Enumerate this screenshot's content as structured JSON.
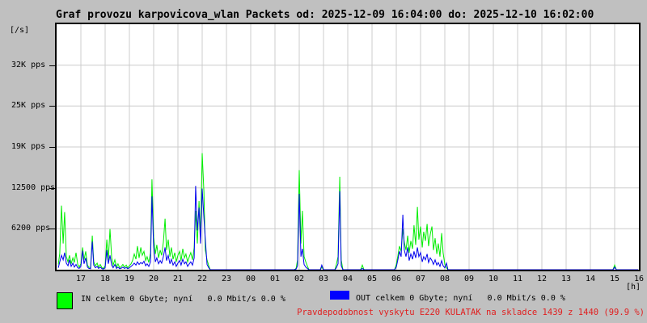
{
  "window": {
    "background": "#c0c0c0"
  },
  "title": "Graf provozu karpovicova_wlan Packets od: 2025-12-09 16:04:00 do: 2025-12-10 16:02:00",
  "y_axis": {
    "unit_label": "[/s]",
    "tick_labels": [
      "6200 pps",
      "12500 pps",
      "19K pps",
      "25K pps",
      "32K pps"
    ]
  },
  "x_axis": {
    "unit_label": "[h]",
    "hour_labels": [
      "17",
      "18",
      "19",
      "20",
      "21",
      "22",
      "23",
      "00",
      "01",
      "02",
      "03",
      "04",
      "05",
      "06",
      "07",
      "08",
      "09",
      "10",
      "11",
      "12",
      "13",
      "14",
      "15",
      "16"
    ]
  },
  "legend": {
    "in": {
      "label": "IN celkem 0 Gbyte; nyní   0.0 Mbit/s 0.0 %",
      "swatch_color": "#00ff00"
    },
    "out": {
      "label": "OUT celkem 0 Gbyte; nyní   0.0 Mbit/s 0.0 %",
      "swatch_color": "#0000ff"
    }
  },
  "footer_warning": {
    "text": "Pravdepodobnost vyskytu E220 KULATAK na skladce 1439 z 1440 (99.9 %)",
    "color": "#e02020"
  },
  "colors": {
    "background": "#c0c0c0",
    "plot_background": "#ffffff",
    "grid": "#cccccc",
    "frame": "#000000",
    "in_line": "#00ee00",
    "out_line": "#0000ee"
  },
  "chart_data": {
    "type": "line",
    "title": "Graf provozu karpovicova_wlan Packets",
    "time_start": "2025-12-09 16:04:00",
    "time_end": "2025-12-10 16:02:00",
    "x_unit": "hours since 2025-12-09 16:00",
    "y_unit": "packets per second",
    "xlim": [
      0,
      24
    ],
    "ylim": [
      0,
      37500
    ],
    "grid": true,
    "x_gridline_step_hours": 1,
    "y_gridline_values": [
      6200,
      12500,
      19000,
      25000,
      32000
    ],
    "series": [
      {
        "name": "IN",
        "color": "#00ee00",
        "value_index": 1
      },
      {
        "name": "OUT",
        "color": "#0000ee",
        "value_index": 2
      }
    ],
    "points": [
      [
        0.07,
        800,
        300
      ],
      [
        0.13,
        2500,
        1200
      ],
      [
        0.2,
        9800,
        2200
      ],
      [
        0.27,
        4000,
        1500
      ],
      [
        0.33,
        8800,
        2600
      ],
      [
        0.4,
        2000,
        1000
      ],
      [
        0.47,
        1200,
        600
      ],
      [
        0.53,
        2200,
        1500
      ],
      [
        0.6,
        900,
        500
      ],
      [
        0.67,
        1800,
        1000
      ],
      [
        0.73,
        1100,
        400
      ],
      [
        0.8,
        2600,
        800
      ],
      [
        0.87,
        800,
        300
      ],
      [
        0.93,
        400,
        200
      ],
      [
        1.0,
        900,
        500
      ],
      [
        1.07,
        3400,
        2900
      ],
      [
        1.13,
        1500,
        900
      ],
      [
        1.2,
        2800,
        1800
      ],
      [
        1.27,
        700,
        400
      ],
      [
        1.33,
        400,
        200
      ],
      [
        1.4,
        300,
        150
      ],
      [
        1.47,
        5200,
        4300
      ],
      [
        1.53,
        1200,
        700
      ],
      [
        1.6,
        600,
        300
      ],
      [
        1.67,
        1000,
        500
      ],
      [
        1.73,
        400,
        200
      ],
      [
        1.8,
        800,
        400
      ],
      [
        1.87,
        300,
        150
      ],
      [
        1.93,
        200,
        100
      ],
      [
        2.0,
        600,
        300
      ],
      [
        2.07,
        4600,
        3000
      ],
      [
        2.13,
        1400,
        900
      ],
      [
        2.2,
        6200,
        2200
      ],
      [
        2.27,
        1800,
        700
      ],
      [
        2.33,
        700,
        300
      ],
      [
        2.4,
        1500,
        800
      ],
      [
        2.47,
        400,
        200
      ],
      [
        2.53,
        900,
        400
      ],
      [
        2.6,
        300,
        150
      ],
      [
        2.67,
        500,
        250
      ],
      [
        2.73,
        800,
        400
      ],
      [
        2.8,
        400,
        200
      ],
      [
        2.87,
        700,
        350
      ],
      [
        2.93,
        300,
        150
      ],
      [
        3.0,
        600,
        300
      ],
      [
        3.07,
        900,
        500
      ],
      [
        3.13,
        1400,
        700
      ],
      [
        3.2,
        2400,
        1000
      ],
      [
        3.27,
        1600,
        700
      ],
      [
        3.33,
        3600,
        1200
      ],
      [
        3.4,
        1800,
        800
      ],
      [
        3.47,
        3400,
        1100
      ],
      [
        3.53,
        2200,
        900
      ],
      [
        3.6,
        2800,
        1300
      ],
      [
        3.67,
        1400,
        600
      ],
      [
        3.73,
        2000,
        900
      ],
      [
        3.8,
        1100,
        500
      ],
      [
        3.87,
        2600,
        1200
      ],
      [
        3.93,
        13800,
        11200
      ],
      [
        4.0,
        5000,
        3400
      ],
      [
        4.07,
        2400,
        1200
      ],
      [
        4.13,
        3800,
        1800
      ],
      [
        4.2,
        1800,
        900
      ],
      [
        4.27,
        3000,
        1400
      ],
      [
        4.33,
        2200,
        1000
      ],
      [
        4.4,
        4200,
        2000
      ],
      [
        4.47,
        7800,
        3400
      ],
      [
        4.53,
        3000,
        1400
      ],
      [
        4.6,
        4600,
        2200
      ],
      [
        4.67,
        2000,
        900
      ],
      [
        4.73,
        3400,
        1600
      ],
      [
        4.8,
        1600,
        700
      ],
      [
        4.87,
        2600,
        1200
      ],
      [
        4.93,
        1200,
        500
      ],
      [
        5.0,
        2200,
        1000
      ],
      [
        5.07,
        2800,
        1400
      ],
      [
        5.13,
        1400,
        700
      ],
      [
        5.2,
        3200,
        1600
      ],
      [
        5.27,
        1800,
        900
      ],
      [
        5.33,
        2400,
        1200
      ],
      [
        5.4,
        1200,
        500
      ],
      [
        5.47,
        2000,
        900
      ],
      [
        5.53,
        2600,
        1200
      ],
      [
        5.6,
        1500,
        700
      ],
      [
        5.67,
        3400,
        1800
      ],
      [
        5.73,
        9000,
        12800
      ],
      [
        5.8,
        4000,
        6000
      ],
      [
        5.87,
        10500,
        9500
      ],
      [
        5.93,
        5000,
        4000
      ],
      [
        6.0,
        17800,
        12400
      ],
      [
        6.07,
        12000,
        8000
      ],
      [
        6.13,
        3000,
        4600
      ],
      [
        6.2,
        1500,
        800
      ],
      [
        6.27,
        600,
        300
      ],
      [
        6.33,
        0,
        0
      ],
      [
        9.8,
        0,
        0
      ],
      [
        9.87,
        200,
        100
      ],
      [
        9.93,
        1500,
        600
      ],
      [
        10.0,
        15200,
        11600
      ],
      [
        10.07,
        4000,
        2000
      ],
      [
        10.13,
        9000,
        3200
      ],
      [
        10.2,
        2000,
        800
      ],
      [
        10.27,
        1200,
        400
      ],
      [
        10.33,
        600,
        200
      ],
      [
        10.4,
        0,
        0
      ],
      [
        10.87,
        0,
        0
      ],
      [
        10.93,
        400,
        700
      ],
      [
        11.0,
        0,
        0
      ],
      [
        11.47,
        0,
        0
      ],
      [
        11.53,
        800,
        300
      ],
      [
        11.6,
        2000,
        900
      ],
      [
        11.67,
        14200,
        12000
      ],
      [
        11.73,
        1500,
        600
      ],
      [
        11.8,
        0,
        0
      ],
      [
        12.53,
        0,
        0
      ],
      [
        12.6,
        700,
        200
      ],
      [
        12.67,
        0,
        0
      ],
      [
        13.93,
        0,
        0
      ],
      [
        14.0,
        800,
        400
      ],
      [
        14.07,
        2200,
        1600
      ],
      [
        14.13,
        3600,
        2800
      ],
      [
        14.2,
        2800,
        2000
      ],
      [
        14.27,
        6200,
        8400
      ],
      [
        14.33,
        4200,
        3000
      ],
      [
        14.4,
        3000,
        2000
      ],
      [
        14.47,
        5200,
        3400
      ],
      [
        14.53,
        2600,
        1400
      ],
      [
        14.6,
        4400,
        2400
      ],
      [
        14.67,
        3200,
        1600
      ],
      [
        14.73,
        6800,
        2800
      ],
      [
        14.8,
        3800,
        1800
      ],
      [
        14.87,
        9600,
        3400
      ],
      [
        14.93,
        4600,
        2000
      ],
      [
        15.0,
        6600,
        2600
      ],
      [
        15.07,
        3400,
        1200
      ],
      [
        15.13,
        5800,
        2000
      ],
      [
        15.2,
        4400,
        1500
      ],
      [
        15.27,
        7000,
        2400
      ],
      [
        15.33,
        3600,
        1100
      ],
      [
        15.4,
        5400,
        1800
      ],
      [
        15.47,
        6600,
        1400
      ],
      [
        15.53,
        3000,
        800
      ],
      [
        15.6,
        4800,
        1500
      ],
      [
        15.67,
        2400,
        700
      ],
      [
        15.73,
        4000,
        1100
      ],
      [
        15.8,
        2000,
        500
      ],
      [
        15.87,
        5600,
        1400
      ],
      [
        15.93,
        2600,
        600
      ],
      [
        16.0,
        800,
        300
      ],
      [
        16.07,
        300,
        1000
      ],
      [
        16.13,
        0,
        0
      ],
      [
        22.93,
        0,
        0
      ],
      [
        23.0,
        700,
        400
      ],
      [
        23.07,
        0,
        0
      ],
      [
        23.97,
        0,
        0
      ]
    ]
  }
}
